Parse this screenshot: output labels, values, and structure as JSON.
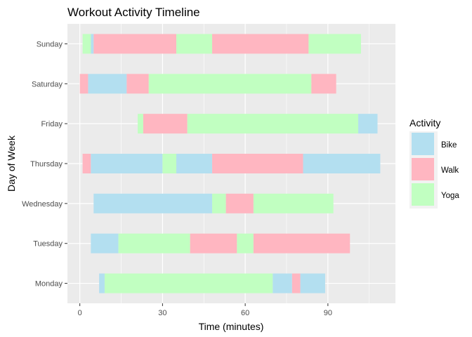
{
  "chart_data": {
    "type": "bar",
    "orientation": "horizontal-stacked-timeline",
    "title": "Workout Activity Timeline",
    "xlabel": "Time (minutes)",
    "ylabel": "Day of Week",
    "xlim": [
      -4.5,
      114.5
    ],
    "xticks": [
      0,
      30,
      60,
      90
    ],
    "categories": [
      "Monday",
      "Tuesday",
      "Wednesday",
      "Thursday",
      "Friday",
      "Saturday",
      "Sunday"
    ],
    "grid": true,
    "legend": {
      "title": "Activity",
      "position": "right",
      "entries": [
        {
          "name": "Bike",
          "color": "#B3DFF0"
        },
        {
          "name": "Walk",
          "color": "#FFB6C1"
        },
        {
          "name": "Yoga",
          "color": "#C1FFC1"
        }
      ]
    },
    "colors": {
      "Bike": "#B3DFF0",
      "Walk": "#FFB6C1",
      "Yoga": "#C1FFC1"
    },
    "segments": [
      {
        "day": "Monday",
        "activity": "Bike",
        "start": 7,
        "end": 9
      },
      {
        "day": "Monday",
        "activity": "Yoga",
        "start": 9,
        "end": 70
      },
      {
        "day": "Monday",
        "activity": "Bike",
        "start": 70,
        "end": 77
      },
      {
        "day": "Monday",
        "activity": "Walk",
        "start": 77,
        "end": 80
      },
      {
        "day": "Monday",
        "activity": "Bike",
        "start": 80,
        "end": 89
      },
      {
        "day": "Tuesday",
        "activity": "Bike",
        "start": 4,
        "end": 14
      },
      {
        "day": "Tuesday",
        "activity": "Yoga",
        "start": 14,
        "end": 40
      },
      {
        "day": "Tuesday",
        "activity": "Walk",
        "start": 40,
        "end": 57
      },
      {
        "day": "Tuesday",
        "activity": "Yoga",
        "start": 57,
        "end": 63
      },
      {
        "day": "Tuesday",
        "activity": "Walk",
        "start": 63,
        "end": 98
      },
      {
        "day": "Wednesday",
        "activity": "Bike",
        "start": 5,
        "end": 48
      },
      {
        "day": "Wednesday",
        "activity": "Yoga",
        "start": 48,
        "end": 53
      },
      {
        "day": "Wednesday",
        "activity": "Walk",
        "start": 53,
        "end": 63
      },
      {
        "day": "Wednesday",
        "activity": "Yoga",
        "start": 63,
        "end": 92
      },
      {
        "day": "Thursday",
        "activity": "Walk",
        "start": 1,
        "end": 4
      },
      {
        "day": "Thursday",
        "activity": "Bike",
        "start": 4,
        "end": 30
      },
      {
        "day": "Thursday",
        "activity": "Yoga",
        "start": 30,
        "end": 35
      },
      {
        "day": "Thursday",
        "activity": "Bike",
        "start": 35,
        "end": 48
      },
      {
        "day": "Thursday",
        "activity": "Walk",
        "start": 48,
        "end": 81
      },
      {
        "day": "Thursday",
        "activity": "Bike",
        "start": 81,
        "end": 109
      },
      {
        "day": "Friday",
        "activity": "Yoga",
        "start": 21,
        "end": 23
      },
      {
        "day": "Friday",
        "activity": "Walk",
        "start": 23,
        "end": 39
      },
      {
        "day": "Friday",
        "activity": "Yoga",
        "start": 39,
        "end": 101
      },
      {
        "day": "Friday",
        "activity": "Bike",
        "start": 101,
        "end": 108
      },
      {
        "day": "Saturday",
        "activity": "Walk",
        "start": 0,
        "end": 3
      },
      {
        "day": "Saturday",
        "activity": "Bike",
        "start": 3,
        "end": 17
      },
      {
        "day": "Saturday",
        "activity": "Walk",
        "start": 17,
        "end": 25
      },
      {
        "day": "Saturday",
        "activity": "Yoga",
        "start": 25,
        "end": 84
      },
      {
        "day": "Saturday",
        "activity": "Walk",
        "start": 84,
        "end": 93
      },
      {
        "day": "Sunday",
        "activity": "Yoga",
        "start": 1,
        "end": 4
      },
      {
        "day": "Sunday",
        "activity": "Bike",
        "start": 4,
        "end": 5
      },
      {
        "day": "Sunday",
        "activity": "Walk",
        "start": 5,
        "end": 35
      },
      {
        "day": "Sunday",
        "activity": "Yoga",
        "start": 35,
        "end": 48
      },
      {
        "day": "Sunday",
        "activity": "Walk",
        "start": 48,
        "end": 83
      },
      {
        "day": "Sunday",
        "activity": "Yoga",
        "start": 83,
        "end": 102
      }
    ]
  }
}
